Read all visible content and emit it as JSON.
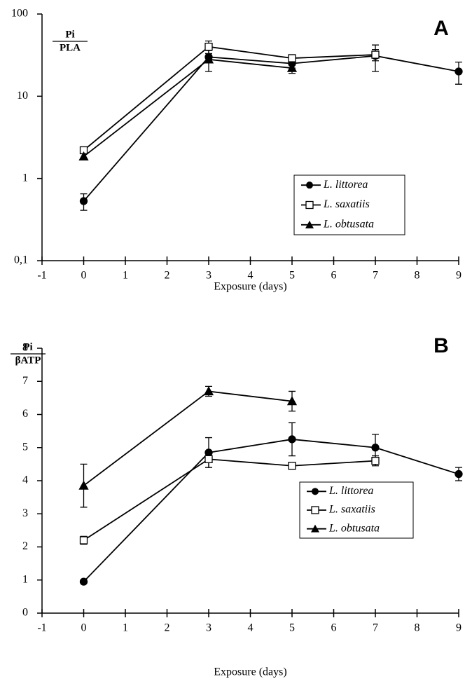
{
  "chart_data": [
    {
      "type": "line",
      "panel_label": "A",
      "y_label_top": "Pi",
      "y_label_bottom": "PLA",
      "x_label": "Exposure (days)",
      "log_y": true,
      "xlim": [
        -1,
        9
      ],
      "xticks": [
        -1,
        0,
        1,
        2,
        3,
        4,
        5,
        6,
        7,
        8,
        9
      ],
      "ylim": [
        0.1,
        100
      ],
      "yticks": [
        {
          "value": 0.1,
          "label": "0,1"
        },
        1,
        10,
        100
      ],
      "series": [
        {
          "name": "L. littorea",
          "color": "#000000",
          "marker": "circle",
          "x": [
            0,
            3,
            5,
            7,
            9
          ],
          "values": [
            0.53,
            30,
            25,
            31,
            20
          ],
          "errors": [
            0.12,
            3,
            3,
            11,
            6
          ]
        },
        {
          "name": "L. saxatiis",
          "color": "#000000",
          "marker": "square",
          "x": [
            0,
            3,
            5,
            7
          ],
          "values": [
            2.2,
            40,
            29,
            32
          ],
          "errors": [
            0.2,
            7,
            3,
            5
          ]
        },
        {
          "name": "L. obtusata",
          "color": "#000000",
          "marker": "triangle",
          "x": [
            0,
            3,
            5
          ],
          "values": [
            1.85,
            28,
            22
          ],
          "errors": [
            0.15,
            8,
            3
          ]
        }
      ]
    },
    {
      "type": "line",
      "panel_label": "B",
      "y_label_top": "Pi",
      "y_label_bottom": "βATP",
      "x_label": "Exposure (days)",
      "log_y": false,
      "xlim": [
        -1,
        9
      ],
      "xticks": [
        -1,
        0,
        1,
        2,
        3,
        4,
        5,
        6,
        7,
        8,
        9
      ],
      "ylim": [
        0,
        8
      ],
      "yticks": [
        0,
        1,
        2,
        3,
        4,
        5,
        6,
        7,
        8
      ],
      "series": [
        {
          "name": "L. littorea",
          "color": "#000000",
          "marker": "circle",
          "x": [
            0,
            3,
            5,
            7,
            9
          ],
          "values": [
            0.95,
            4.85,
            5.25,
            5.0,
            4.2
          ],
          "errors": [
            0.05,
            0.45,
            0.5,
            0.4,
            0.2
          ]
        },
        {
          "name": "L. saxatiis",
          "color": "#000000",
          "marker": "square",
          "x": [
            0,
            3,
            5,
            7
          ],
          "values": [
            2.2,
            4.65,
            4.45,
            4.6
          ],
          "errors": [
            0.12,
            0.25,
            0.05,
            0.15
          ]
        },
        {
          "name": "L. obtusata",
          "color": "#000000",
          "marker": "triangle",
          "x": [
            0,
            3,
            5
          ],
          "values": [
            3.85,
            6.7,
            6.4
          ],
          "errors": [
            0.65,
            0.15,
            0.3
          ]
        }
      ]
    }
  ]
}
